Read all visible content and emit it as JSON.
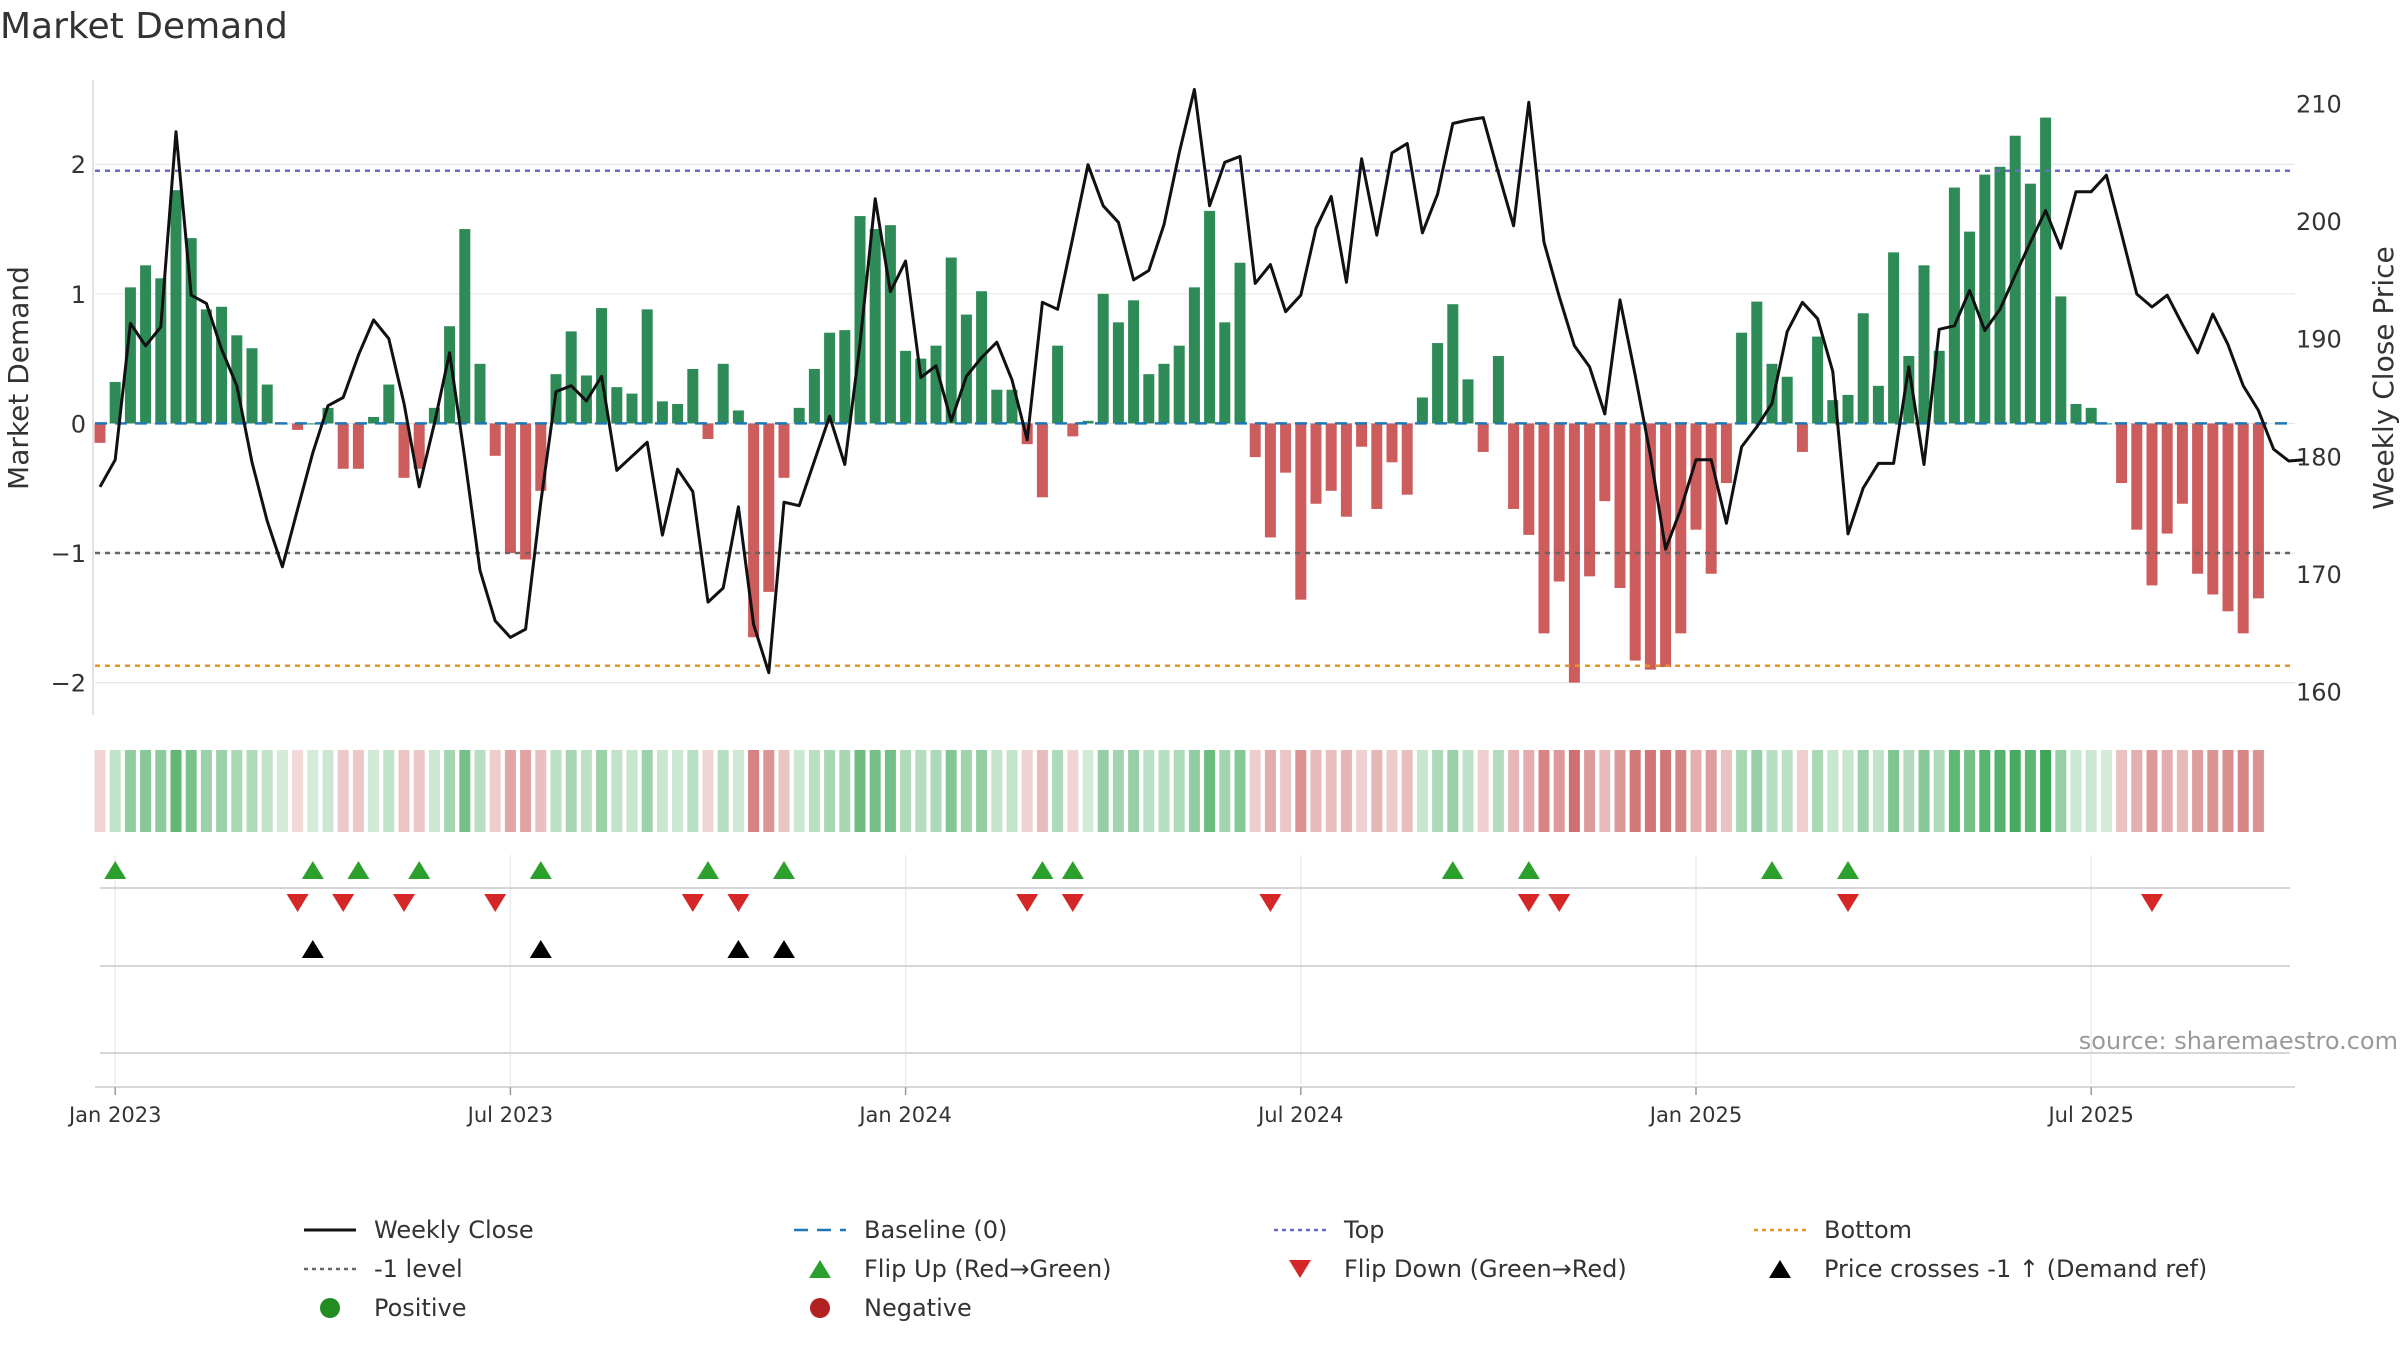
{
  "chart_data": {
    "type": "bar",
    "title": "Market Demand",
    "source": "source: sharemaestro.com",
    "ylabel_left": "Market Demand",
    "ylabel_right": "Weekly Close Price",
    "ylim_left": [
      -2.25,
      2.65
    ],
    "ylim_right": [
      158,
      212
    ],
    "yticks_left": [
      {
        "v": 2,
        "label": "2"
      },
      {
        "v": 1,
        "label": "1"
      },
      {
        "v": 0,
        "label": "0"
      },
      {
        "v": -1,
        "label": "−1"
      },
      {
        "v": -2,
        "label": "−2"
      }
    ],
    "yticks_right": [
      {
        "v": 210,
        "label": "210"
      },
      {
        "v": 200,
        "label": "200"
      },
      {
        "v": 190,
        "label": "190"
      },
      {
        "v": 180,
        "label": "180"
      },
      {
        "v": 170,
        "label": "170"
      },
      {
        "v": 160,
        "label": "160"
      }
    ],
    "xticks": [
      {
        "i": 1,
        "label": "Jan 2023"
      },
      {
        "i": 27,
        "label": "Jul 2023"
      },
      {
        "i": 53,
        "label": "Jan 2024"
      },
      {
        "i": 79,
        "label": "Jul 2024"
      },
      {
        "i": 105,
        "label": "Jan 2025"
      },
      {
        "i": 131,
        "label": "Jul 2025"
      }
    ],
    "reference_lines": {
      "top": 1.95,
      "minus_one": -1.0,
      "bottom": -1.87
    },
    "demand": [
      -0.15,
      0.32,
      1.05,
      1.22,
      1.12,
      1.8,
      1.43,
      0.88,
      0.9,
      0.68,
      0.58,
      0.3,
      0.0,
      -0.05,
      0.0,
      0.12,
      -0.35,
      -0.35,
      0.05,
      0.3,
      -0.42,
      -0.35,
      0.12,
      0.75,
      1.5,
      0.46,
      -0.25,
      -1.0,
      -1.05,
      -0.52,
      0.38,
      0.71,
      0.37,
      0.89,
      0.28,
      0.23,
      0.88,
      0.17,
      0.15,
      0.42,
      -0.12,
      0.46,
      0.1,
      -1.65,
      -1.3,
      -0.42,
      0.12,
      0.42,
      0.7,
      0.72,
      1.6,
      1.5,
      1.53,
      0.56,
      0.5,
      0.6,
      1.28,
      0.84,
      1.02,
      0.26,
      0.26,
      -0.16,
      -0.57,
      0.6,
      -0.1,
      0.02,
      1.0,
      0.78,
      0.95,
      0.38,
      0.46,
      0.6,
      1.05,
      1.64,
      0.78,
      1.24,
      -0.26,
      -0.88,
      -0.38,
      -1.36,
      -0.62,
      -0.52,
      -0.72,
      -0.18,
      -0.66,
      -0.3,
      -0.55,
      0.2,
      0.62,
      0.92,
      0.34,
      -0.22,
      0.52,
      -0.66,
      -0.86,
      -1.62,
      -1.22,
      -2.0,
      -1.18,
      -0.6,
      -1.27,
      -1.83,
      -1.9,
      -1.88,
      -1.62,
      -0.82,
      -1.16,
      -0.46,
      0.7,
      0.94,
      0.46,
      0.36,
      -0.22,
      0.67,
      0.18,
      0.22,
      0.85,
      0.29,
      1.32,
      0.52,
      1.22,
      0.56,
      1.82,
      1.48,
      1.92,
      1.98,
      2.22,
      1.85,
      2.36,
      0.98,
      0.15,
      0.12,
      0.0,
      -0.46,
      -0.82,
      -1.25,
      -0.85,
      -0.62,
      -1.16,
      -1.32,
      -1.45,
      -1.62,
      -1.35
    ],
    "price": [
      177.4,
      179.7,
      191.3,
      189.4,
      191.0,
      207.6,
      193.7,
      193.0,
      189.1,
      186.0,
      179.5,
      174.5,
      170.6,
      175.5,
      180.3,
      184.3,
      185.0,
      188.6,
      191.6,
      190.0,
      184.5,
      177.4,
      182.8,
      188.8,
      179.8,
      170.3,
      166.0,
      164.6,
      165.3,
      176.1,
      185.5,
      186.0,
      184.7,
      186.8,
      178.8,
      180.0,
      181.2,
      173.3,
      178.9,
      177.0,
      167.6,
      168.8,
      175.7,
      165.7,
      161.6,
      176.1,
      175.8,
      179.6,
      183.4,
      179.3,
      189.6,
      201.9,
      194.0,
      196.6,
      186.7,
      187.7,
      183.0,
      186.8,
      188.4,
      189.7,
      186.5,
      181.4,
      193.1,
      192.5,
      198.6,
      204.8,
      201.3,
      199.9,
      195.0,
      195.8,
      199.7,
      205.8,
      211.2,
      201.3,
      205.0,
      205.5,
      194.7,
      196.3,
      192.3,
      193.7,
      199.4,
      202.1,
      194.8,
      205.3,
      198.8,
      205.8,
      206.6,
      199.0,
      202.3,
      208.3,
      208.6,
      208.8,
      204.1,
      199.6,
      210.1,
      198.2,
      193.6,
      189.4,
      187.6,
      183.6,
      193.3,
      186.9,
      180.1,
      172.1,
      175.5,
      179.7,
      179.7,
      174.3,
      180.8,
      182.5,
      184.5,
      190.6,
      193.1,
      191.7,
      187.2,
      173.4,
      177.3,
      179.4,
      179.4,
      187.6,
      179.3,
      190.8,
      191.1,
      194.1,
      190.7,
      192.5,
      195.4,
      198.2,
      200.9,
      197.7,
      202.5,
      202.5,
      203.9,
      198.9,
      193.8,
      192.7,
      193.7,
      191.2,
      188.8,
      192.1,
      189.5,
      186.0,
      183.9,
      180.6,
      179.6,
      179.7
    ],
    "flip_up": [
      1,
      14,
      17,
      21,
      29,
      40,
      45,
      62,
      64,
      89,
      94,
      110,
      115
    ],
    "flip_down": [
      13,
      16,
      20,
      26,
      39,
      42,
      61,
      64,
      77,
      94,
      96,
      115,
      135
    ],
    "price_cross": [
      14,
      29,
      42,
      45
    ],
    "heat_colors": {
      "pos_base": "#3aa655",
      "neg_base": "#c85a5a"
    },
    "colors": {
      "pos_bar": "#2e8b57",
      "neg_bar": "#cd5c5c",
      "line": "#111111",
      "baseline": "#1f77b4",
      "top": "#6a6acd",
      "minus_one": "#666666",
      "bottom": "#e69520",
      "flip_up": "#2ca02c",
      "flip_down": "#d62728",
      "cross": "#000000",
      "grid": "#e6e6e6"
    },
    "legend": [
      {
        "label": "Weekly Close",
        "kind": "line",
        "color": "#111111"
      },
      {
        "label": "Baseline (0)",
        "kind": "dash",
        "color": "#1f77b4"
      },
      {
        "label": "Top",
        "kind": "dot",
        "color": "#6a6acd"
      },
      {
        "label": "Bottom",
        "kind": "dot",
        "color": "#e69520"
      },
      {
        "label": "-1 level",
        "kind": "dot",
        "color": "#666666"
      },
      {
        "label": "Flip Up (Red→Green)",
        "kind": "tri-up",
        "color": "#2ca02c"
      },
      {
        "label": "Flip Down (Green→Red)",
        "kind": "tri-down",
        "color": "#d62728"
      },
      {
        "label": "Price crosses -1 ↑ (Demand ref)",
        "kind": "tri-up",
        "color": "#000000"
      },
      {
        "label": "Positive",
        "kind": "circle",
        "color": "#228b22"
      },
      {
        "label": "Negative",
        "kind": "circle",
        "color": "#b22222"
      }
    ]
  }
}
